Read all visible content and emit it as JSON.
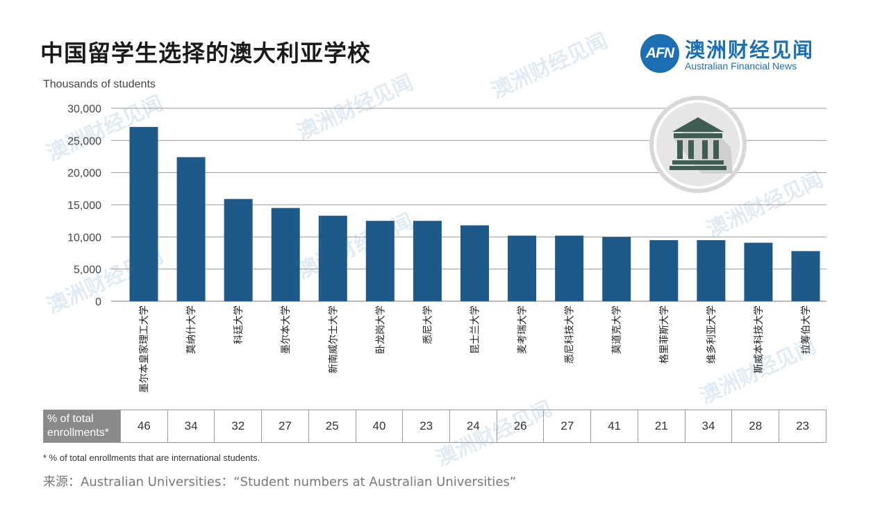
{
  "title": "中国留学生选择的澳大利亚学校",
  "logo": {
    "mark": "AFN",
    "name_cn": "澳洲财经见闻",
    "name_en": "Australian Financial News"
  },
  "chart_data": {
    "type": "bar",
    "ylabel": "Thousands of students",
    "ylim": [
      0,
      30000
    ],
    "yticks": [
      "30,000",
      "25,000",
      "20,000",
      "15,000",
      "10,000",
      "5,000",
      "0"
    ],
    "ytick_values": [
      30000,
      25000,
      20000,
      15000,
      10000,
      5000,
      0
    ],
    "grid": true,
    "bar_color": "#1d5a8a",
    "categories": [
      "墨尔本皇家理工大学",
      "莫纳什大学",
      "科廷大学",
      "墨尔本大学",
      "新南威尔士大学",
      "卧龙岗大学",
      "悉尼大学",
      "昆士兰大学",
      "麦考瑞大学",
      "悉尼科技大学",
      "莫道克大学",
      "格里菲斯大学",
      "维多利亚大学",
      "斯威本科技大学",
      "拉筹伯大学"
    ],
    "values": [
      27100,
      22400,
      15900,
      14500,
      13300,
      12500,
      12500,
      11800,
      10200,
      10200,
      10000,
      9500,
      9500,
      9100,
      7800
    ]
  },
  "pct_table": {
    "header": "% of total enrollments*",
    "values": [
      "46",
      "34",
      "32",
      "27",
      "25",
      "40",
      "23",
      "24",
      "26",
      "27",
      "41",
      "21",
      "34",
      "28",
      "23"
    ]
  },
  "footnote": "* % of total enrollments that are international students.",
  "source": "来源：Australian Universities：“Student numbers at Australian Universities”",
  "icon": "university-building-icon",
  "watermark_text": "澳洲财经见闻"
}
